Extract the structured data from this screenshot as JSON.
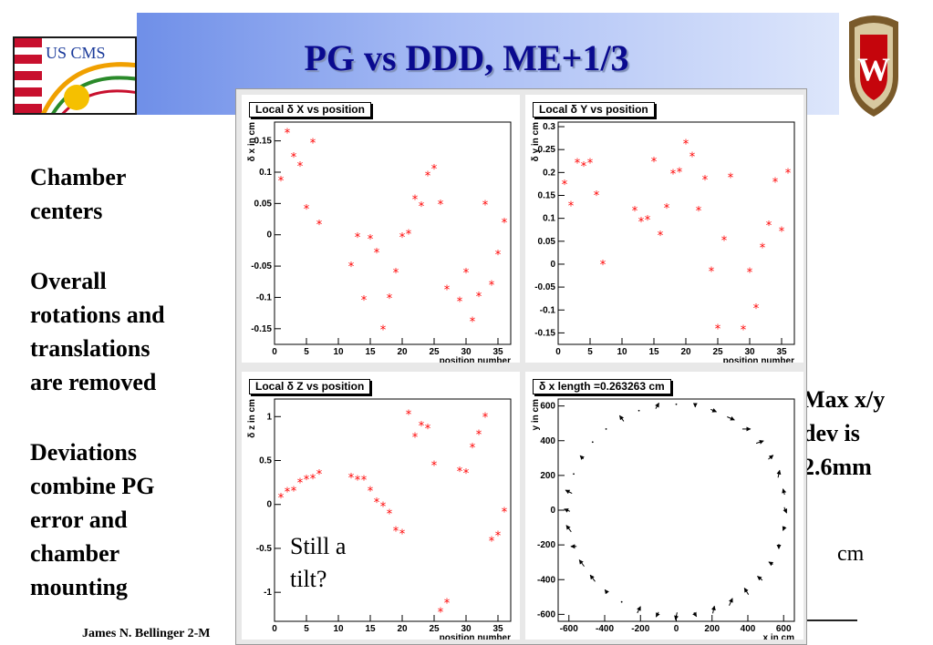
{
  "slide": {
    "title": "PG vs DDD, ME+1/3",
    "bullets": [
      "Chamber\n centers",
      "Overall\n rotations and\n translations\n are removed",
      "Deviations\n combine PG\n error and\n chamber\n mounting"
    ],
    "max_note": "Max x/y\n dev is\n 2.6mm",
    "cm_note": "cm",
    "tilt_note": "Still a\n tilt?",
    "footer": "James N. Bellinger 2-M",
    "logo_text": "US CMS",
    "crest_letter": "W",
    "colors": {
      "title": "#0a0a8f",
      "marker": "#ff0000",
      "arrow": "#000000"
    }
  },
  "chart_data": [
    {
      "type": "scatter",
      "title": "Local δ X vs position",
      "xlabel": "position number",
      "ylabel": "δ x in cm",
      "xlim": [
        0,
        37
      ],
      "ylim": [
        -0.175,
        0.18
      ],
      "xticks": [
        0,
        5,
        10,
        15,
        20,
        25,
        30,
        35
      ],
      "yticks": [
        -0.15,
        -0.1,
        -0.05,
        0,
        0.05,
        0.1,
        0.15
      ],
      "ytick_labels": [
        "-0.15",
        "-0.1",
        "-0.05",
        "0",
        "0.05",
        "0.1",
        "0.15"
      ],
      "marker": "*",
      "x": [
        1,
        2,
        3,
        4,
        5,
        6,
        7,
        12,
        13,
        14,
        15,
        16,
        17,
        18,
        19,
        20,
        21,
        22,
        23,
        24,
        25,
        26,
        27,
        29,
        30,
        31,
        32,
        33,
        34,
        35,
        36
      ],
      "y": [
        0.087,
        0.163,
        0.125,
        0.11,
        0.042,
        0.147,
        0.017,
        -0.05,
        -0.003,
        -0.104,
        -0.006,
        -0.028,
        -0.151,
        -0.101,
        -0.06,
        -0.003,
        0.002,
        0.057,
        0.046,
        0.095,
        0.106,
        0.049,
        -0.087,
        -0.106,
        -0.06,
        -0.138,
        -0.098,
        0.048,
        -0.08,
        -0.031,
        0.02
      ]
    },
    {
      "type": "scatter",
      "title": "Local δ Y vs position",
      "xlabel": "position number",
      "ylabel": "δ y in cm",
      "xlim": [
        0,
        37
      ],
      "ylim": [
        -0.175,
        0.31
      ],
      "xticks": [
        0,
        5,
        10,
        15,
        20,
        25,
        30,
        35
      ],
      "yticks": [
        -0.15,
        -0.1,
        -0.05,
        0,
        0.05,
        0.1,
        0.15,
        0.2,
        0.25,
        0.3
      ],
      "ytick_labels": [
        "-0.15",
        "-0.1",
        "-0.05",
        "0",
        "0.05",
        "0.1",
        "0.15",
        "0.2",
        "0.25",
        "0.3"
      ],
      "marker": "*",
      "x": [
        1,
        2,
        3,
        4,
        5,
        6,
        7,
        12,
        13,
        14,
        15,
        16,
        17,
        18,
        19,
        20,
        21,
        22,
        23,
        24,
        25,
        26,
        27,
        29,
        30,
        31,
        32,
        33,
        34,
        35,
        36
      ],
      "y": [
        0.175,
        0.128,
        0.222,
        0.215,
        0.222,
        0.151,
        0.0,
        0.117,
        0.093,
        0.097,
        0.225,
        0.064,
        0.123,
        0.198,
        0.202,
        0.263,
        0.235,
        0.117,
        0.185,
        -0.015,
        -0.14,
        0.053,
        0.19,
        -0.142,
        -0.017,
        -0.095,
        0.037,
        0.085,
        0.18,
        0.072,
        0.2
      ]
    },
    {
      "type": "scatter",
      "title": "Local δ Z vs position",
      "xlabel": "position number",
      "ylabel": "δ z in cm",
      "xlim": [
        0,
        37
      ],
      "ylim": [
        -1.33,
        1.2
      ],
      "xticks": [
        0,
        5,
        10,
        15,
        20,
        25,
        30,
        35
      ],
      "yticks": [
        -1,
        -0.5,
        0,
        0.5,
        1
      ],
      "ytick_labels": [
        "-1",
        "-0.5",
        "0",
        "0.5",
        "1"
      ],
      "marker": "*",
      "x": [
        1,
        2,
        3,
        4,
        5,
        6,
        7,
        12,
        13,
        14,
        15,
        16,
        17,
        18,
        19,
        20,
        21,
        22,
        23,
        24,
        25,
        26,
        27,
        29,
        30,
        31,
        32,
        33,
        34,
        35,
        36
      ],
      "y": [
        0.08,
        0.15,
        0.16,
        0.25,
        0.29,
        0.3,
        0.35,
        0.31,
        0.28,
        0.28,
        0.16,
        0.03,
        -0.02,
        -0.1,
        -0.3,
        -0.33,
        1.03,
        0.77,
        0.9,
        0.87,
        0.45,
        -1.22,
        -1.12,
        0.38,
        0.36,
        0.65,
        0.8,
        1.0,
        -0.41,
        -0.35,
        -0.08
      ]
    },
    {
      "type": "quiver",
      "title": "δ x   length =0.263263 cm",
      "xlabel": "x in cm",
      "ylabel": "y in cm",
      "xlim": [
        -660,
        660
      ],
      "ylim": [
        -640,
        640
      ],
      "xticks": [
        -600,
        -400,
        -200,
        0,
        200,
        400,
        600
      ],
      "yticks": [
        -600,
        -400,
        -200,
        0,
        200,
        400,
        600
      ],
      "xtick_labels": [
        "-600",
        "-400",
        "-200",
        "0",
        "200",
        "400",
        "600"
      ],
      "ytick_labels": [
        "-600",
        "-400",
        "-200",
        "0",
        "200",
        "400",
        "600"
      ],
      "radius_cm": 610,
      "angles_deg": [
        80,
        70,
        60,
        50,
        40,
        30,
        20,
        10,
        0,
        -10,
        -20,
        -30,
        -40,
        -50,
        -60,
        -70,
        -80,
        -90,
        -100,
        -110,
        -120,
        -130,
        -140,
        -150,
        -160,
        -170,
        180,
        170,
        160,
        150,
        140,
        130,
        120,
        110,
        100,
        90
      ],
      "arrow_dx": [
        0,
        0.7,
        0.9,
        1.0,
        0.9,
        0.6,
        0.2,
        -0.2,
        0.3,
        -0.2,
        0,
        -0.5,
        -0.6,
        -0.5,
        0.4,
        0.2,
        0.3,
        -0.2,
        -0.3,
        0.4,
        0,
        -0.3,
        -0.6,
        -0.6,
        -0.7,
        -0.6,
        -0.7,
        -0.8,
        0,
        -0.4,
        0,
        0,
        -0.5,
        0,
        0.4,
        0
      ],
      "arrow_dy": [
        -0.3,
        -0.3,
        -0.4,
        0,
        0.3,
        0.5,
        0.9,
        0.7,
        -0.7,
        -0.5,
        -0.6,
        0.3,
        0.5,
        0.8,
        0.9,
        0.9,
        -0.5,
        -0.9,
        -0.6,
        0.8,
        0,
        0.4,
        0.8,
        0.8,
        0,
        0.8,
        0.3,
        0.4,
        0,
        0.4,
        0,
        0,
        0.7,
        0,
        0.7,
        0
      ]
    }
  ]
}
